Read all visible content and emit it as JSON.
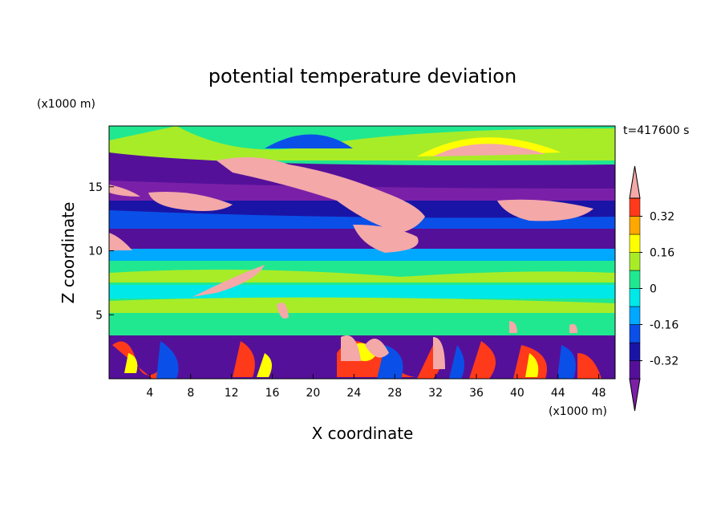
{
  "chart_data": {
    "type": "contour",
    "title": "potential temperature deviation",
    "x_label": "X coordinate",
    "y_label": "Z coordinate",
    "x_unit": "(x1000 m)",
    "y_unit": "(x1000 m)",
    "annotation": "t=417600 s",
    "xlim": [
      0,
      49.6
    ],
    "xticks": [
      4,
      8,
      12,
      16,
      20,
      24,
      28,
      32,
      36,
      40,
      44,
      48
    ],
    "ylim": [
      0,
      19.75
    ],
    "yticks": [
      5,
      10,
      15
    ],
    "colorbar": {
      "levels": [
        -0.4,
        -0.32,
        -0.24,
        -0.16,
        -0.08,
        0,
        0.08,
        0.16,
        0.24,
        0.32,
        0.4
      ],
      "ticks": [
        -0.32,
        -0.16,
        0,
        0.16,
        0.32
      ],
      "colors": [
        "#7a20a8",
        "#55109a",
        "#1a14a6",
        "#0a50e8",
        "#00a8ff",
        "#00e8e8",
        "#20e890",
        "#a8ec28",
        "#ffff00",
        "#ffa800",
        "#ff3a1a",
        "#f4a8a8"
      ]
    }
  }
}
